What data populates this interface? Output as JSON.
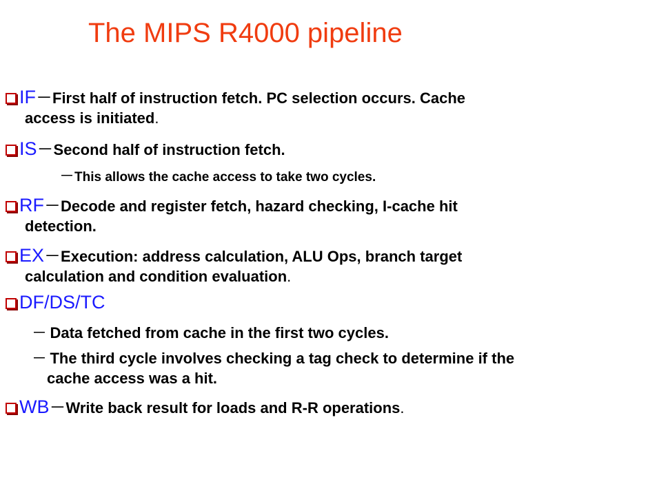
{
  "title": "The MIPS R4000 pipeline",
  "items": [
    {
      "label": "IF",
      "dash": "－",
      "desc_line1": "First half of instruction fetch. PC selection occurs. Cache",
      "desc_line2": "access is initiated",
      "end": "."
    },
    {
      "label": "IS",
      "dash": "－",
      "desc_line1": "Second half of instruction fetch.",
      "sub_dash": "－",
      "sub_text": "This allows the cache access to take two cycles."
    },
    {
      "label": "RF",
      "dash": "－",
      "desc_line1": "Decode and register fetch, hazard checking, I-cache hit",
      "desc_line2": "detection."
    },
    {
      "label": "EX",
      "dash": "－",
      "desc_line1": "Execution: address calculation, ALU Ops, branch target",
      "desc_line2": "calculation and condition evaluation",
      "end": "."
    },
    {
      "label": "DF/DS/TC",
      "subs": [
        {
          "dash": "－",
          "text": "Data fetched from cache in the first two cycles."
        },
        {
          "dash": "－",
          "text": "The third cycle involves checking a tag check to determine if the",
          "text2": "cache access was a hit."
        }
      ]
    },
    {
      "label": "WB",
      "dash": "－",
      "desc_line1": "Write back result for loads and R-R operations",
      "end": "."
    }
  ]
}
